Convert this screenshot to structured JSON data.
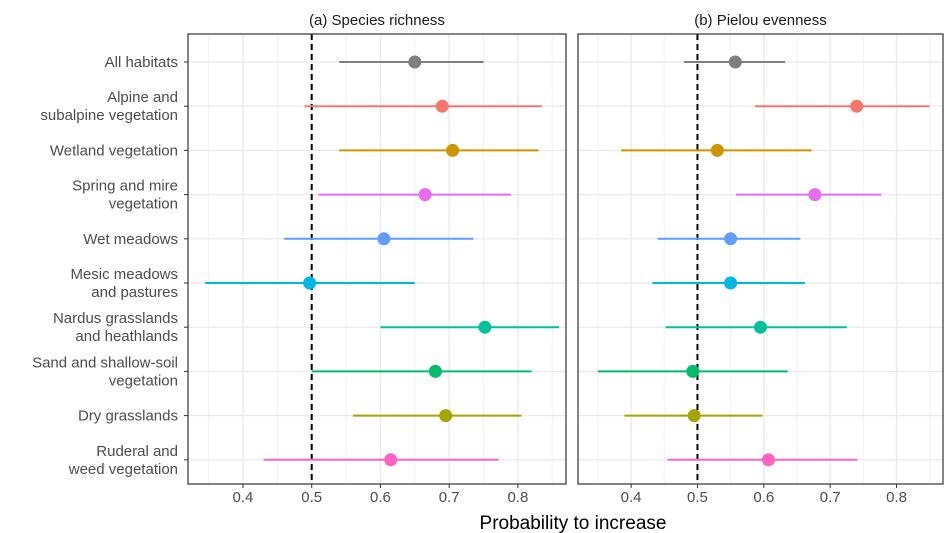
{
  "chart_data": {
    "type": "scatter",
    "xlabel": "Probability to increase",
    "xticks": [
      "0.4",
      "0.5",
      "0.6",
      "0.7",
      "0.8"
    ],
    "categories": [
      "All habitats",
      "Alpine and\nsubalpine vegetation",
      "Wetland vegetation",
      "Spring and mire\nvegetation",
      "Wet meadows",
      "Mesic meadows\nand pastures",
      "Nardus grasslands\nand heathlands",
      "Sand and shallow-soil\nvegetation",
      "Dry grasslands",
      "Ruderal and\nweed vegetation"
    ],
    "colors": [
      "#7f7f7f",
      "#f8766d",
      "#cd9600",
      "#e76bf3",
      "#619cff",
      "#00b8e7",
      "#00c19a",
      "#00be67",
      "#a3a500",
      "#ff61c3"
    ],
    "reference_line": 0.5,
    "panels": [
      {
        "title": "(a) Species richness",
        "points": [
          {
            "estimate": 0.65,
            "low": 0.54,
            "high": 0.75
          },
          {
            "estimate": 0.69,
            "low": 0.49,
            "high": 0.835
          },
          {
            "estimate": 0.705,
            "low": 0.54,
            "high": 0.83
          },
          {
            "estimate": 0.665,
            "low": 0.51,
            "high": 0.79
          },
          {
            "estimate": 0.605,
            "low": 0.46,
            "high": 0.735
          },
          {
            "estimate": 0.497,
            "low": 0.345,
            "high": 0.65
          },
          {
            "estimate": 0.752,
            "low": 0.6,
            "high": 0.86
          },
          {
            "estimate": 0.68,
            "low": 0.5,
            "high": 0.82
          },
          {
            "estimate": 0.695,
            "low": 0.56,
            "high": 0.805
          },
          {
            "estimate": 0.615,
            "low": 0.43,
            "high": 0.772
          }
        ]
      },
      {
        "title": "(b) Pielou evenness",
        "points": [
          {
            "estimate": 0.557,
            "low": 0.48,
            "high": 0.632
          },
          {
            "estimate": 0.74,
            "low": 0.587,
            "high": 0.85
          },
          {
            "estimate": 0.53,
            "low": 0.385,
            "high": 0.672
          },
          {
            "estimate": 0.677,
            "low": 0.558,
            "high": 0.777
          },
          {
            "estimate": 0.55,
            "low": 0.44,
            "high": 0.655
          },
          {
            "estimate": 0.55,
            "low": 0.432,
            "high": 0.662
          },
          {
            "estimate": 0.595,
            "low": 0.452,
            "high": 0.725
          },
          {
            "estimate": 0.493,
            "low": 0.35,
            "high": 0.636
          },
          {
            "estimate": 0.495,
            "low": 0.39,
            "high": 0.598
          },
          {
            "estimate": 0.607,
            "low": 0.455,
            "high": 0.741
          }
        ]
      }
    ]
  }
}
